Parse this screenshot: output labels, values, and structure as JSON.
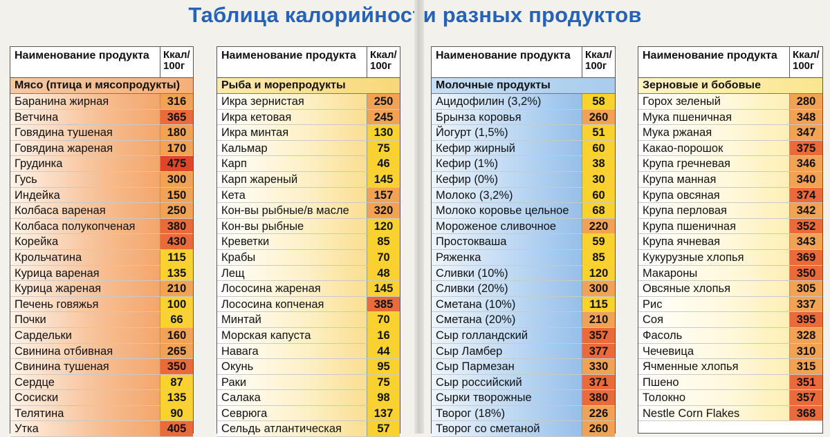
{
  "title": "Таблица калорийности разных продуктов",
  "header": {
    "name": "Наименование продукта",
    "kcal": "Ккал/ 100г"
  },
  "colors": {
    "title": "#2463b8",
    "meat": "#f3a66a",
    "fish": "#f9df92",
    "dairy": "#96bfe8",
    "grain": "#fdefb5"
  },
  "panels": [
    {
      "category": "Мясо (птица и мясопродукты)",
      "items": [
        [
          "Баранина жирная",
          "316"
        ],
        [
          "Ветчина",
          "365"
        ],
        [
          "Говядина тушеная",
          "180"
        ],
        [
          "Говядина жареная",
          "170"
        ],
        [
          "Грудинка",
          "475"
        ],
        [
          "Гусь",
          "300"
        ],
        [
          "Индейка",
          "150"
        ],
        [
          "Колбаса вареная",
          "250"
        ],
        [
          "Колбаса полукопченая",
          "380"
        ],
        [
          "Корейка",
          "430"
        ],
        [
          "Крольчатина",
          "115"
        ],
        [
          "Курица вареная",
          "135"
        ],
        [
          "Курица жареная",
          "210"
        ],
        [
          "Печень говяжья",
          "100"
        ],
        [
          "Почки",
          "66"
        ],
        [
          "Сардельки",
          "160"
        ],
        [
          "Свинина отбивная",
          "265"
        ],
        [
          "Свинина тушеная",
          "350"
        ],
        [
          "Сердце",
          "87"
        ],
        [
          "Сосиски",
          "135"
        ],
        [
          "Телятина",
          "90"
        ],
        [
          "Утка",
          "405"
        ]
      ]
    },
    {
      "category": "Рыба и морепродукты",
      "items": [
        [
          "Икра зернистая",
          "250"
        ],
        [
          "Икра кетовая",
          "245"
        ],
        [
          "Икра минтая",
          "130"
        ],
        [
          "Кальмар",
          "75"
        ],
        [
          "Карп",
          "46"
        ],
        [
          "Карп жареный",
          "145"
        ],
        [
          "Кета",
          "157"
        ],
        [
          "Кон-вы рыбные/в масле",
          "320"
        ],
        [
          "Кон-вы рыбные",
          "120"
        ],
        [
          "Креветки",
          "85"
        ],
        [
          "Крабы",
          "70"
        ],
        [
          "Лещ",
          "48"
        ],
        [
          "Лососина жареная",
          "145"
        ],
        [
          "Лососина копченая",
          "385"
        ],
        [
          "Минтай",
          "70"
        ],
        [
          "Морская капуста",
          "16"
        ],
        [
          "Навага",
          "44"
        ],
        [
          "Окунь",
          "95"
        ],
        [
          "Раки",
          "75"
        ],
        [
          "Салака",
          "98"
        ],
        [
          "Севрюга",
          "137"
        ],
        [
          "Сельдь атлантическая",
          "57"
        ]
      ]
    },
    {
      "category": "Молочные продукты",
      "items": [
        [
          "Ацидофилин (3,2%)",
          "58"
        ],
        [
          "Брынза коровья",
          "260"
        ],
        [
          "Йогурт (1,5%)",
          "51"
        ],
        [
          "Кефир жирный",
          "60"
        ],
        [
          "Кефир (1%)",
          "38"
        ],
        [
          "Кефир (0%)",
          "30"
        ],
        [
          "Молоко (3,2%)",
          "60"
        ],
        [
          "Молоко коровье цельное",
          "68"
        ],
        [
          "Мороженое сливочное",
          "220"
        ],
        [
          "Простокваша",
          "59"
        ],
        [
          "Ряженка",
          "85"
        ],
        [
          "Сливки (10%)",
          "120"
        ],
        [
          "Сливки (20%)",
          "300"
        ],
        [
          "Сметана (10%)",
          "115"
        ],
        [
          "Сметана (20%)",
          "210"
        ],
        [
          "Сыр голландский",
          "357"
        ],
        [
          "Сыр Ламбер",
          "377"
        ],
        [
          "Сыр Пармезан",
          "330"
        ],
        [
          "Сыр российский",
          "371"
        ],
        [
          "Сырки творожные",
          "380"
        ],
        [
          "Творог (18%)",
          "226"
        ],
        [
          "Творог со сметаной",
          "260"
        ]
      ]
    },
    {
      "category": "Зерновые и бобовые",
      "items": [
        [
          "Горох зеленый",
          "280"
        ],
        [
          "Мука пшеничная",
          "348"
        ],
        [
          "Мука ржаная",
          "347"
        ],
        [
          "Какао-порошок",
          "375"
        ],
        [
          "Крупа гречневая",
          "346"
        ],
        [
          "Крупа манная",
          "340"
        ],
        [
          "Крупа овсяная",
          "374"
        ],
        [
          "Крупа перловая",
          "342"
        ],
        [
          "Крупа пшеничная",
          "352"
        ],
        [
          "Крупа ячневая",
          "343"
        ],
        [
          "Кукурузные хлопья",
          "369"
        ],
        [
          "Макароны",
          "350"
        ],
        [
          "Овсяные хлопья",
          "305"
        ],
        [
          "Рис",
          "337"
        ],
        [
          "Соя",
          "395"
        ],
        [
          "Фасоль",
          "328"
        ],
        [
          "Чечевица",
          "310"
        ],
        [
          "Ячменные хлопья",
          "315"
        ],
        [
          "Пшено",
          "351"
        ],
        [
          "Толокно",
          "357"
        ],
        [
          "Nestle Corn Flakes",
          "368"
        ]
      ]
    }
  ]
}
